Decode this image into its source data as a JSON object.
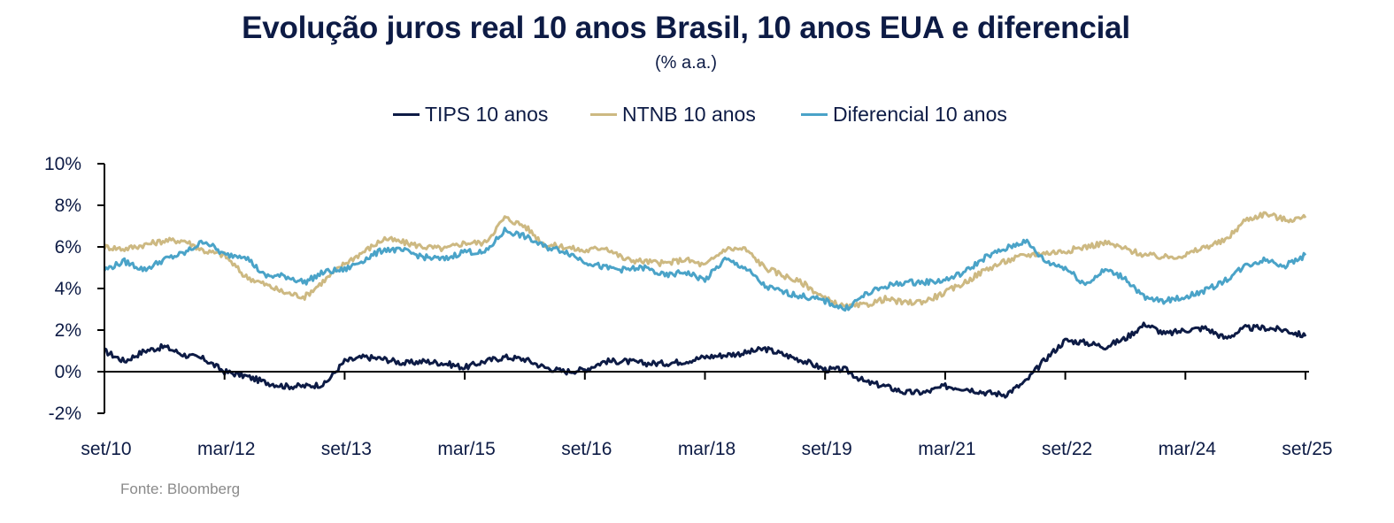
{
  "chart_data": {
    "type": "line",
    "title": "Evolução juros real 10 anos Brasil, 10 anos EUA e diferencial",
    "subtitle": "(% a.a.)",
    "xlabel": "",
    "ylabel": "",
    "source": "Fonte: Bloomberg",
    "legend_position": "top-center",
    "grid": false,
    "ylim": [
      -2,
      10
    ],
    "y_ticks": [
      -2,
      0,
      2,
      4,
      6,
      8,
      10
    ],
    "y_tick_labels": [
      "-2%",
      "0%",
      "2%",
      "4%",
      "6%",
      "8%",
      "10%"
    ],
    "x_tick_labels": [
      "set/10",
      "mar/12",
      "set/13",
      "mar/15",
      "set/16",
      "mar/18",
      "set/19",
      "mar/21",
      "set/22",
      "mar/24",
      "set/25"
    ],
    "x_sampling": "quarterly, set/10 to set/25",
    "x": [
      "set/10",
      "dez/10",
      "mar/11",
      "jun/11",
      "set/11",
      "dez/11",
      "mar/12",
      "jun/12",
      "set/12",
      "dez/12",
      "mar/13",
      "jun/13",
      "set/13",
      "dez/13",
      "mar/14",
      "jun/14",
      "set/14",
      "dez/14",
      "mar/15",
      "jun/15",
      "set/15",
      "dez/15",
      "mar/16",
      "jun/16",
      "set/16",
      "dez/16",
      "mar/17",
      "jun/17",
      "set/17",
      "dez/17",
      "mar/18",
      "jun/18",
      "set/18",
      "dez/18",
      "mar/19",
      "jun/19",
      "set/19",
      "dez/19",
      "mar/20",
      "jun/20",
      "set/20",
      "dez/20",
      "mar/21",
      "jun/21",
      "set/21",
      "dez/21",
      "mar/22",
      "jun/22",
      "set/22",
      "dez/22",
      "mar/23",
      "jun/23",
      "set/23",
      "dez/23",
      "mar/24",
      "jun/24",
      "set/24",
      "dez/24",
      "mar/25",
      "jun/25",
      "set/25"
    ],
    "series": [
      {
        "name": "TIPS 10 anos",
        "color": "#0d1b45",
        "values": [
          1.0,
          0.5,
          1.0,
          1.2,
          0.8,
          0.6,
          0.0,
          -0.2,
          -0.5,
          -0.7,
          -0.7,
          -0.6,
          0.5,
          0.7,
          0.6,
          0.4,
          0.5,
          0.4,
          0.2,
          0.5,
          0.7,
          0.6,
          0.2,
          0.0,
          0.1,
          0.5,
          0.5,
          0.4,
          0.4,
          0.5,
          0.7,
          0.8,
          0.9,
          1.1,
          0.8,
          0.5,
          0.1,
          0.1,
          -0.5,
          -0.7,
          -1.0,
          -1.0,
          -0.7,
          -0.8,
          -1.0,
          -1.1,
          -0.5,
          0.6,
          1.5,
          1.4,
          1.2,
          1.6,
          2.3,
          1.8,
          2.0,
          2.1,
          1.6,
          2.1,
          2.1,
          2.0,
          1.7
        ]
      },
      {
        "name": "NTNB 10 anos",
        "color": "#cdb982",
        "values": [
          6.0,
          5.9,
          6.1,
          6.3,
          6.3,
          5.8,
          5.6,
          4.6,
          4.2,
          3.8,
          3.6,
          4.4,
          5.2,
          5.8,
          6.4,
          6.2,
          6.0,
          5.9,
          6.2,
          6.2,
          7.4,
          7.0,
          6.1,
          6.0,
          5.8,
          6.0,
          5.4,
          5.3,
          5.2,
          5.4,
          5.1,
          5.9,
          5.9,
          5.0,
          4.6,
          4.2,
          3.5,
          3.1,
          3.2,
          3.5,
          3.3,
          3.4,
          3.8,
          4.3,
          4.9,
          5.3,
          5.6,
          5.7,
          5.8,
          6.0,
          6.2,
          5.9,
          5.6,
          5.5,
          5.6,
          6.0,
          6.3,
          7.3,
          7.6,
          7.3,
          7.4
        ]
      },
      {
        "name": "Diferencial 10 anos",
        "color": "#4aa3c8",
        "values": [
          4.9,
          5.3,
          4.9,
          5.4,
          5.7,
          6.3,
          5.6,
          5.6,
          4.6,
          4.6,
          4.3,
          4.8,
          4.9,
          5.4,
          5.9,
          5.8,
          5.5,
          5.4,
          5.8,
          5.7,
          6.8,
          6.5,
          6.0,
          5.8,
          5.3,
          5.0,
          4.9,
          5.0,
          4.6,
          4.8,
          4.4,
          5.4,
          5.0,
          4.1,
          3.8,
          3.6,
          3.4,
          3.0,
          3.7,
          4.1,
          4.3,
          4.3,
          4.4,
          4.8,
          5.5,
          5.9,
          6.3,
          5.3,
          5.0,
          4.2,
          4.9,
          4.5,
          3.5,
          3.4,
          3.6,
          3.9,
          4.4,
          5.1,
          5.4,
          5.1,
          5.6
        ]
      }
    ]
  }
}
